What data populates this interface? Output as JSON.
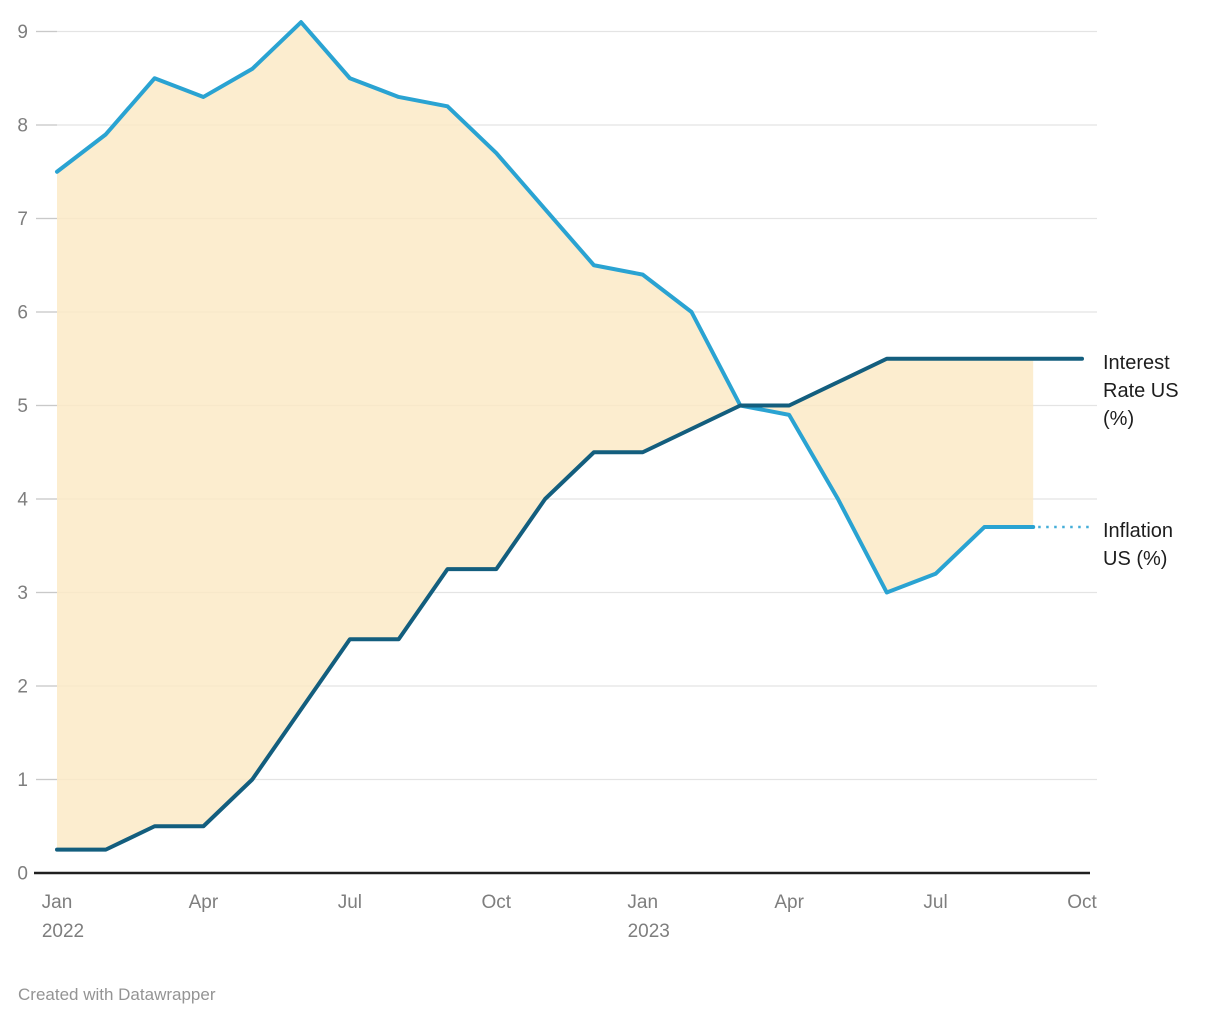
{
  "chart_data": {
    "type": "line",
    "title": "",
    "xlabel": "",
    "ylabel": "",
    "x_months": [
      "Jan 2022",
      "Feb 2022",
      "Mar 2022",
      "Apr 2022",
      "May 2022",
      "Jun 2022",
      "Jul 2022",
      "Aug 2022",
      "Sep 2022",
      "Oct 2022",
      "Nov 2022",
      "Dec 2022",
      "Jan 2023",
      "Feb 2023",
      "Mar 2023",
      "Apr 2023",
      "May 2023",
      "Jun 2023",
      "Jul 2023",
      "Aug 2023",
      "Sep 2023",
      "Oct 2023"
    ],
    "series": [
      {
        "name": "interest-rate-us",
        "label": "Interest Rate US (%)",
        "color": "#135e7e",
        "values": [
          0.25,
          0.25,
          0.5,
          0.5,
          1.0,
          1.75,
          2.5,
          2.5,
          3.25,
          3.25,
          4.0,
          4.5,
          4.5,
          4.75,
          5.0,
          5.0,
          5.25,
          5.5,
          5.5,
          5.5,
          5.5,
          5.5
        ]
      },
      {
        "name": "inflation-us",
        "label": "Inflation US (%)",
        "color": "#2aa3d2",
        "values": [
          7.5,
          7.9,
          8.5,
          8.3,
          8.6,
          9.1,
          8.5,
          8.3,
          8.2,
          7.7,
          7.1,
          6.5,
          6.4,
          6.0,
          5.0,
          4.9,
          4.0,
          3.0,
          3.2,
          3.7,
          3.7,
          null
        ]
      }
    ],
    "fill_between": {
      "between": [
        "interest-rate-us",
        "inflation-us"
      ],
      "color": "#fbe8c3",
      "opacity": 0.8
    },
    "y_ticks": [
      0,
      1,
      2,
      3,
      4,
      5,
      6,
      7,
      8,
      9
    ],
    "ylim": [
      0,
      9.1
    ],
    "x_tick_labels": [
      {
        "month": 0,
        "label": "Jan",
        "year": "2022"
      },
      {
        "month": 3,
        "label": "Apr",
        "year": ""
      },
      {
        "month": 6,
        "label": "Jul",
        "year": ""
      },
      {
        "month": 9,
        "label": "Oct",
        "year": ""
      },
      {
        "month": 12,
        "label": "Jan",
        "year": "2023"
      },
      {
        "month": 15,
        "label": "Apr",
        "year": ""
      },
      {
        "month": 18,
        "label": "Jul",
        "year": ""
      },
      {
        "month": 21,
        "label": "Oct",
        "year": ""
      }
    ],
    "grid": "horizontal",
    "legend_position": "right-line-labels",
    "colors": {
      "gridline": "#e4e4e4",
      "tick": "#c9c9c9",
      "axis_line": "#202020",
      "tick_label": "#7e7e7e",
      "connector_dotted": "#45aed8"
    }
  },
  "footer": {
    "attribution": "Created with Datawrapper"
  }
}
